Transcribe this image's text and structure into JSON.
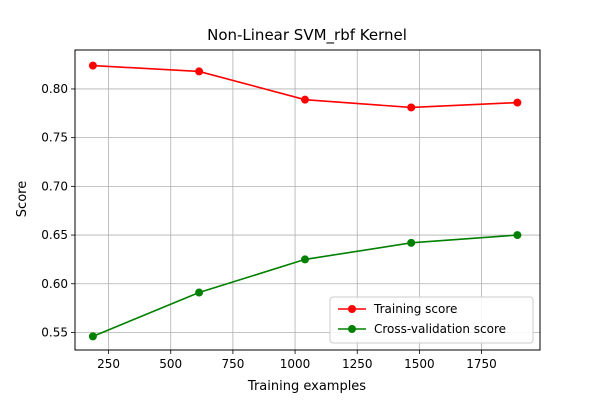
{
  "chart_data": {
    "type": "line",
    "title": "Non-Linear SVM_rbf Kernel",
    "xlabel": "Training examples",
    "ylabel": "Score",
    "xlim": [
      115,
      1985
    ],
    "ylim": [
      0.532,
      0.84
    ],
    "xticks": [
      250,
      500,
      750,
      1000,
      1250,
      1500,
      1750
    ],
    "yticks": [
      0.55,
      0.6,
      0.65,
      0.7,
      0.75,
      0.8
    ],
    "ytick_labels": [
      "0.55",
      "0.60",
      "0.65",
      "0.70",
      "0.75",
      "0.80"
    ],
    "grid": true,
    "legend_position": "lower-right",
    "x": [
      187,
      614,
      1040,
      1467,
      1894
    ],
    "series": [
      {
        "name": "Training score",
        "color": "#ff0000",
        "values": [
          0.824,
          0.818,
          0.789,
          0.781,
          0.786
        ]
      },
      {
        "name": "Cross-validation score",
        "color": "#008000",
        "values": [
          0.546,
          0.591,
          0.625,
          0.642,
          0.65
        ]
      }
    ]
  }
}
